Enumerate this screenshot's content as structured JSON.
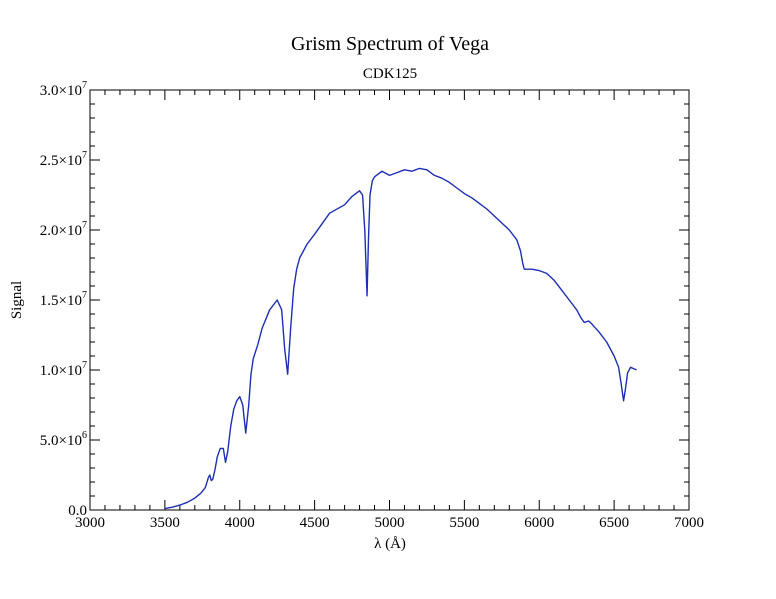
{
  "chart_data": {
    "type": "line",
    "title": "Grism Spectrum of Vega",
    "subtitle": "CDK125",
    "xlabel": "λ (Å)",
    "ylabel": "Signal",
    "xlim": [
      3000,
      7000
    ],
    "ylim": [
      0,
      30000000
    ],
    "grid": false,
    "x_ticks": [
      {
        "value": 3000,
        "label": "3000"
      },
      {
        "value": 3500,
        "label": "3500"
      },
      {
        "value": 4000,
        "label": "4000"
      },
      {
        "value": 4500,
        "label": "4500"
      },
      {
        "value": 5000,
        "label": "5000"
      },
      {
        "value": 5500,
        "label": "5500"
      },
      {
        "value": 6000,
        "label": "6000"
      },
      {
        "value": 6500,
        "label": "6500"
      },
      {
        "value": 7000,
        "label": "7000"
      }
    ],
    "y_ticks": [
      {
        "value": 0,
        "mantissa": "0.0",
        "exponent": ""
      },
      {
        "value": 5000000,
        "mantissa": "5.0×10",
        "exponent": "6"
      },
      {
        "value": 10000000,
        "mantissa": "1.0×10",
        "exponent": "7"
      },
      {
        "value": 15000000,
        "mantissa": "1.5×10",
        "exponent": "7"
      },
      {
        "value": 20000000,
        "mantissa": "2.0×10",
        "exponent": "7"
      },
      {
        "value": 25000000,
        "mantissa": "2.5×10",
        "exponent": "7"
      },
      {
        "value": 30000000,
        "mantissa": "3.0×10",
        "exponent": "7"
      }
    ],
    "line_color": "#1c2fb5",
    "series": [
      {
        "x": [
          3500,
          3550,
          3600,
          3650,
          3700,
          3740,
          3770,
          3790,
          3800,
          3810,
          3820,
          3835,
          3850,
          3870,
          3890,
          3905,
          3920,
          3940,
          3960,
          3980,
          4000,
          4020,
          4040,
          4060,
          4075,
          4090,
          4120,
          4150,
          4200,
          4250,
          4280,
          4300,
          4320,
          4340,
          4360,
          4380,
          4400,
          4450,
          4500,
          4600,
          4700,
          4750,
          4800,
          4820,
          4835,
          4850,
          4860,
          4870,
          4885,
          4900,
          4950,
          5000,
          5050,
          5100,
          5150,
          5200,
          5250,
          5300,
          5350,
          5400,
          5450,
          5500,
          5550,
          5600,
          5650,
          5700,
          5750,
          5800,
          5850,
          5875,
          5890,
          5900,
          5950,
          6000,
          6050,
          6100,
          6150,
          6200,
          6250,
          6280,
          6300,
          6330,
          6350,
          6400,
          6450,
          6500,
          6530,
          6550,
          6563,
          6575,
          6590,
          6610,
          6630,
          6650
        ],
        "y": [
          100000,
          200000,
          350000,
          550000,
          850000,
          1200000,
          1600000,
          2300000,
          2500000,
          2100000,
          2200000,
          2900000,
          3800000,
          4400000,
          4400000,
          3400000,
          4200000,
          6000000,
          7200000,
          7800000,
          8100000,
          7500000,
          5500000,
          7500000,
          9700000,
          10800000,
          11800000,
          13000000,
          14300000,
          15000000,
          14300000,
          11500000,
          9700000,
          13000000,
          15800000,
          17200000,
          18000000,
          19000000,
          19700000,
          21200000,
          21800000,
          22400000,
          22800000,
          22500000,
          20000000,
          15300000,
          19500000,
          22500000,
          23500000,
          23800000,
          24200000,
          23900000,
          24100000,
          24300000,
          24200000,
          24400000,
          24300000,
          23900000,
          23700000,
          23400000,
          23000000,
          22600000,
          22300000,
          21900000,
          21500000,
          21000000,
          20500000,
          20000000,
          19300000,
          18500000,
          17600000,
          17200000,
          17200000,
          17100000,
          16900000,
          16400000,
          15700000,
          15000000,
          14300000,
          13700000,
          13400000,
          13500000,
          13300000,
          12700000,
          12000000,
          11000000,
          10200000,
          8800000,
          7800000,
          8600000,
          9800000,
          10200000,
          10100000,
          10000000
        ]
      }
    ]
  }
}
